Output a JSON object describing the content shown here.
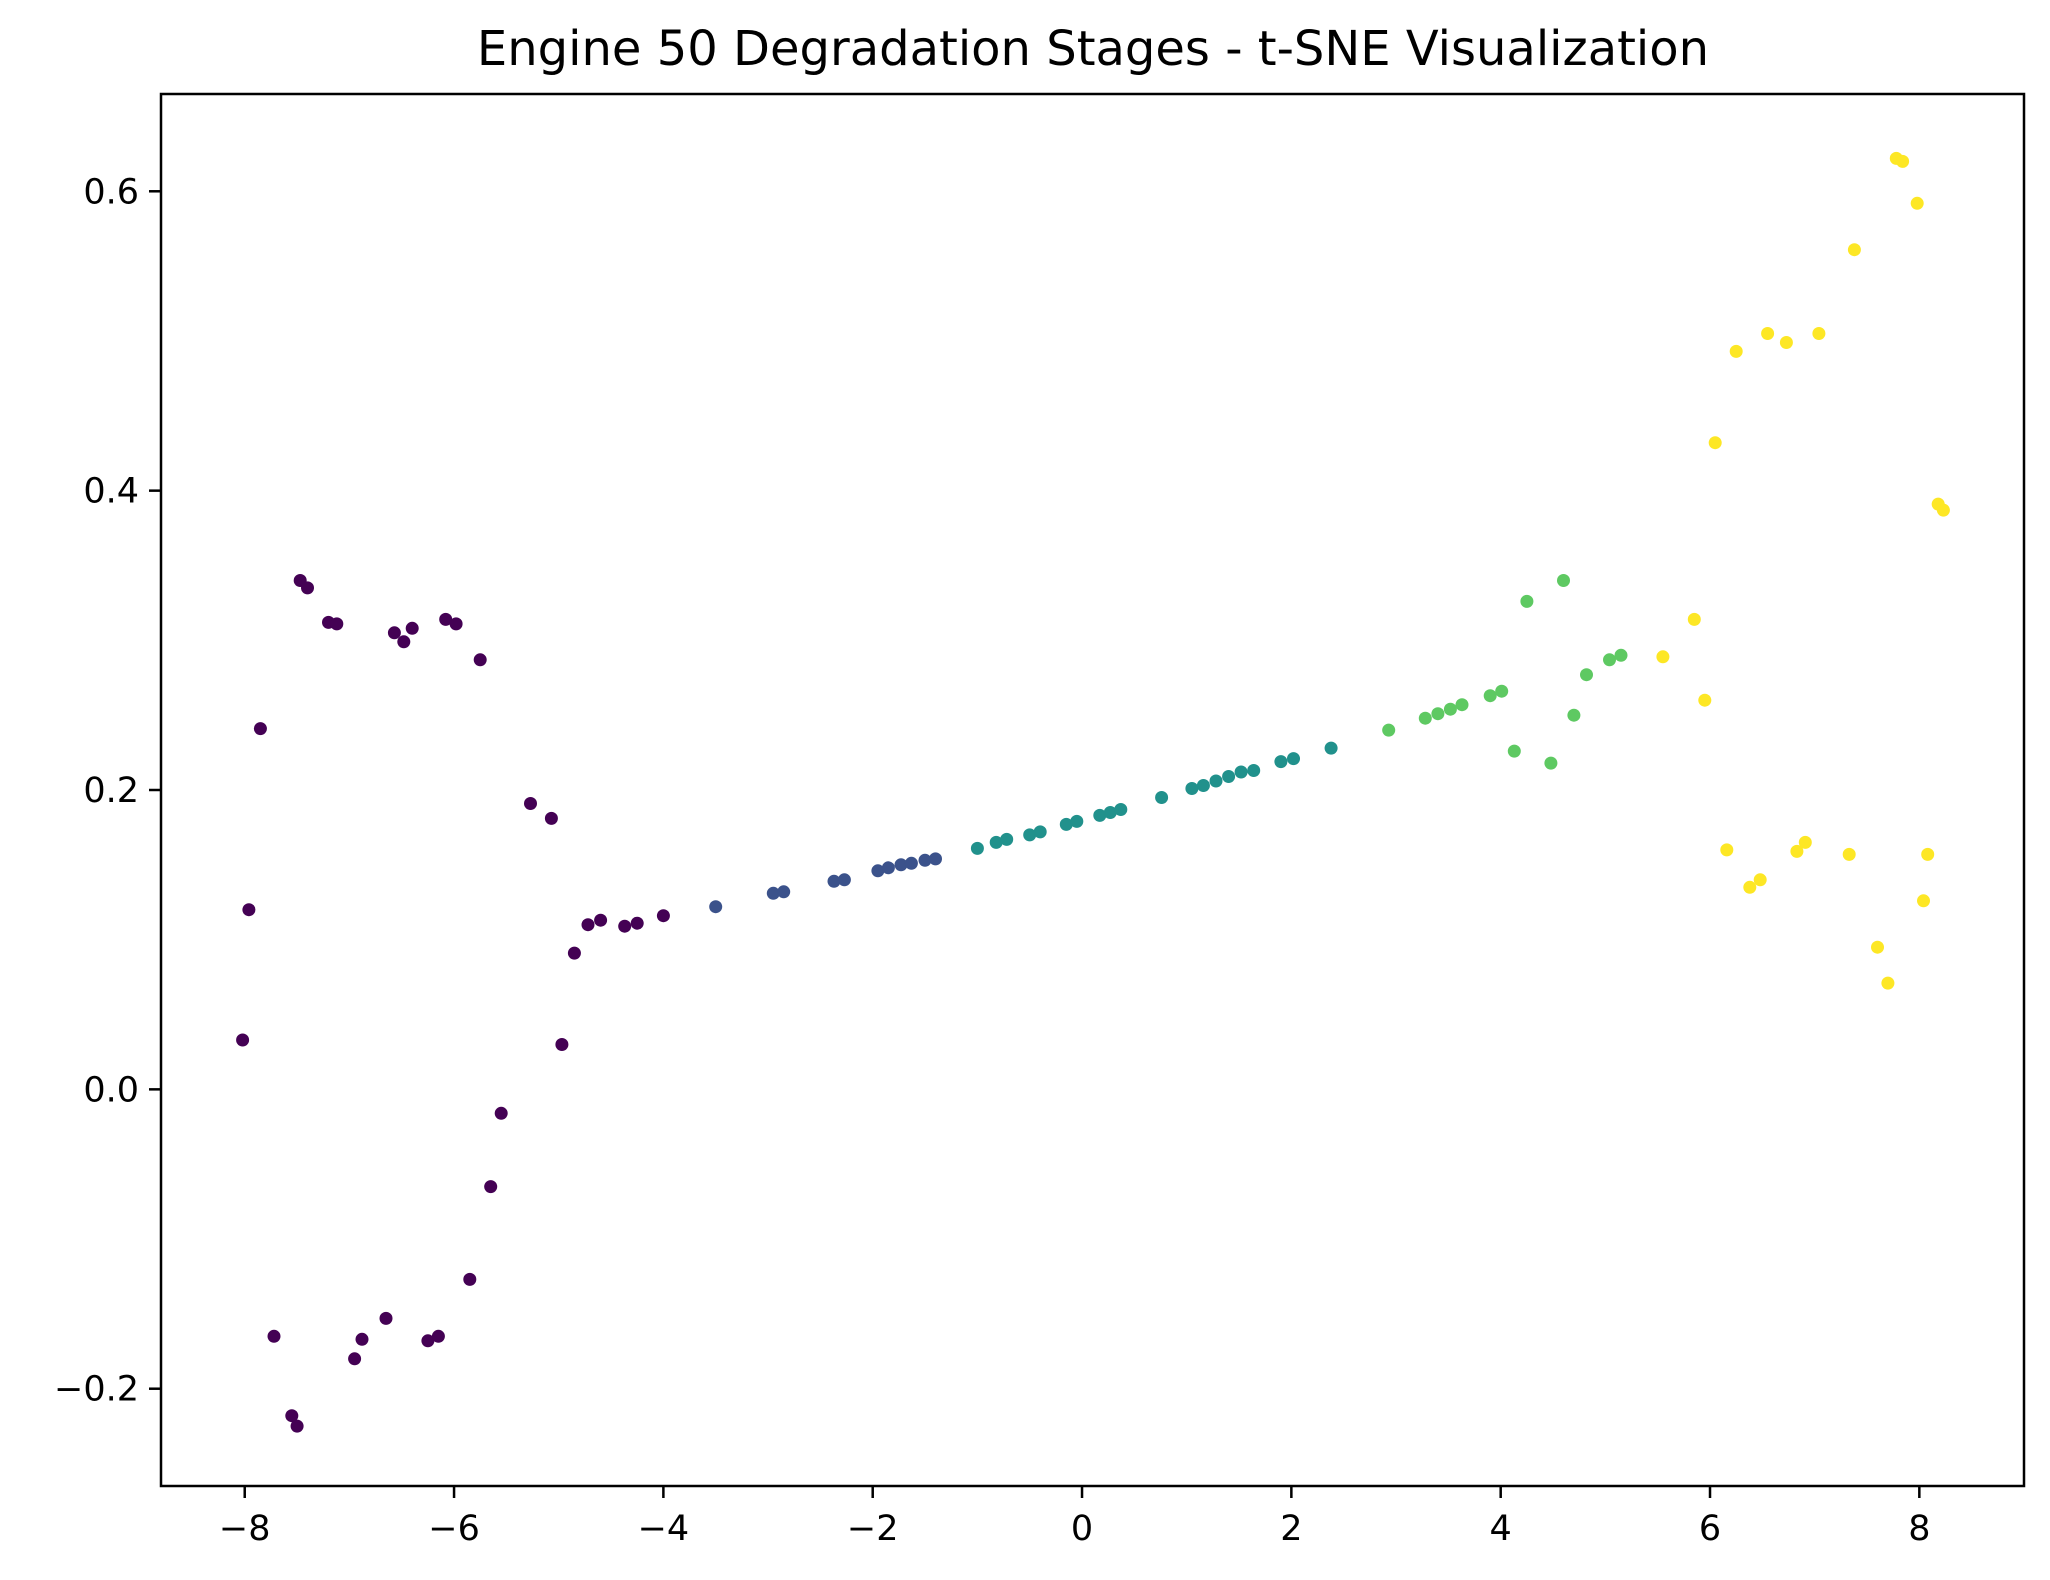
{
  "chart_data": {
    "type": "scatter",
    "title": "Engine 50 Degradation Stages - t-SNE Visualization",
    "xlabel": "",
    "ylabel": "",
    "xlim": [
      -8.8,
      9.0
    ],
    "ylim": [
      -0.265,
      0.665
    ],
    "x_ticks": [
      -8,
      -6,
      -4,
      -2,
      0,
      2,
      4,
      6,
      8
    ],
    "x_tick_labels": [
      "−8",
      "−6",
      "−4",
      "−2",
      "0",
      "2",
      "4",
      "6",
      "8"
    ],
    "y_ticks": [
      -0.2,
      0.0,
      0.2,
      0.4,
      0.6
    ],
    "y_tick_labels": [
      "−0.2",
      "0.0",
      "0.2",
      "0.4",
      "0.6"
    ],
    "grid": false,
    "colormap": "viridis",
    "series": [
      {
        "color": "#440154",
        "points": [
          [
            -8.02,
            0.033
          ],
          [
            -7.96,
            0.12
          ],
          [
            -7.85,
            0.241
          ],
          [
            -7.72,
            -0.165
          ],
          [
            -7.55,
            -0.218
          ],
          [
            -7.5,
            -0.225
          ],
          [
            -7.47,
            0.34
          ],
          [
            -7.4,
            0.335
          ],
          [
            -7.2,
            0.312
          ],
          [
            -7.12,
            0.311
          ],
          [
            -6.95,
            -0.18
          ],
          [
            -6.88,
            -0.167
          ],
          [
            -6.65,
            -0.153
          ],
          [
            -6.57,
            0.305
          ],
          [
            -6.48,
            0.299
          ],
          [
            -6.4,
            0.308
          ],
          [
            -6.25,
            -0.168
          ],
          [
            -6.15,
            -0.165
          ],
          [
            -6.08,
            0.314
          ],
          [
            -5.98,
            0.311
          ],
          [
            -5.85,
            -0.127
          ],
          [
            -5.75,
            0.287
          ],
          [
            -5.65,
            -0.065
          ],
          [
            -5.55,
            -0.016
          ],
          [
            -5.27,
            0.191
          ],
          [
            -5.07,
            0.181
          ],
          [
            -4.97,
            0.03
          ],
          [
            -4.85,
            0.091
          ],
          [
            -4.72,
            0.11
          ],
          [
            -4.6,
            0.113
          ],
          [
            -4.37,
            0.109
          ],
          [
            -4.25,
            0.111
          ],
          [
            -4.0,
            0.116
          ]
        ]
      },
      {
        "color": "#3b528b",
        "points": [
          [
            -3.5,
            0.122
          ],
          [
            -2.95,
            0.131
          ],
          [
            -2.85,
            0.132
          ],
          [
            -2.37,
            0.139
          ],
          [
            -2.27,
            0.14
          ],
          [
            -1.95,
            0.146
          ],
          [
            -1.85,
            0.148
          ],
          [
            -1.73,
            0.15
          ],
          [
            -1.63,
            0.151
          ],
          [
            -1.5,
            0.153
          ],
          [
            -1.4,
            0.154
          ]
        ]
      },
      {
        "color": "#21918c",
        "points": [
          [
            -1.0,
            0.161
          ],
          [
            -0.82,
            0.165
          ],
          [
            -0.72,
            0.167
          ],
          [
            -0.5,
            0.17
          ],
          [
            -0.4,
            0.172
          ],
          [
            -0.15,
            0.177
          ],
          [
            -0.05,
            0.179
          ],
          [
            0.17,
            0.183
          ],
          [
            0.27,
            0.185
          ],
          [
            0.37,
            0.187
          ],
          [
            0.76,
            0.195
          ],
          [
            1.05,
            0.201
          ],
          [
            1.16,
            0.203
          ],
          [
            1.28,
            0.206
          ],
          [
            1.4,
            0.209
          ],
          [
            1.52,
            0.212
          ],
          [
            1.64,
            0.213
          ],
          [
            1.9,
            0.219
          ],
          [
            2.02,
            0.221
          ],
          [
            2.38,
            0.228
          ]
        ]
      },
      {
        "color": "#5ec962",
        "points": [
          [
            2.93,
            0.24
          ],
          [
            3.28,
            0.248
          ],
          [
            3.4,
            0.251
          ],
          [
            3.52,
            0.254
          ],
          [
            3.63,
            0.257
          ],
          [
            3.9,
            0.263
          ],
          [
            4.01,
            0.266
          ],
          [
            4.13,
            0.226
          ],
          [
            4.25,
            0.326
          ],
          [
            4.48,
            0.218
          ],
          [
            4.6,
            0.34
          ],
          [
            4.7,
            0.25
          ],
          [
            4.82,
            0.277
          ],
          [
            5.04,
            0.287
          ],
          [
            5.15,
            0.29
          ]
        ]
      },
      {
        "color": "#fde725",
        "points": [
          [
            5.55,
            0.289
          ],
          [
            5.85,
            0.314
          ],
          [
            5.95,
            0.26
          ],
          [
            6.05,
            0.432
          ],
          [
            6.16,
            0.16
          ],
          [
            6.25,
            0.493
          ],
          [
            6.38,
            0.135
          ],
          [
            6.48,
            0.14
          ],
          [
            6.55,
            0.505
          ],
          [
            6.73,
            0.499
          ],
          [
            6.83,
            0.159
          ],
          [
            6.91,
            0.165
          ],
          [
            7.04,
            0.505
          ],
          [
            7.33,
            0.157
          ],
          [
            7.38,
            0.561
          ],
          [
            7.6,
            0.095
          ],
          [
            7.7,
            0.071
          ],
          [
            7.78,
            0.622
          ],
          [
            7.84,
            0.62
          ],
          [
            7.98,
            0.592
          ],
          [
            8.04,
            0.126
          ],
          [
            8.08,
            0.157
          ],
          [
            8.18,
            0.391
          ],
          [
            8.23,
            0.387
          ]
        ]
      }
    ]
  }
}
